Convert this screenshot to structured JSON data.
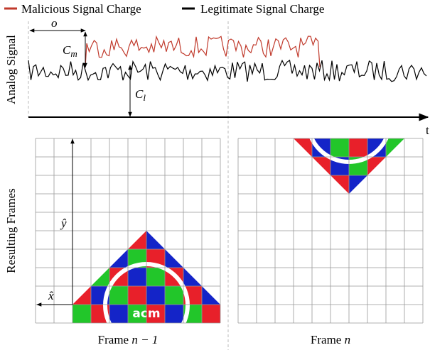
{
  "legend": {
    "malicious": "Malicious Signal Charge",
    "legitimate": "Legitimate Signal Charge"
  },
  "signal": {
    "ylabel": "Analog Signal",
    "xlabel": "t",
    "offset": "o",
    "cm": {
      "symbol": "C",
      "sub": "m"
    },
    "cl": {
      "symbol": "C",
      "sub": "l"
    }
  },
  "frames": {
    "ylabel": "Resulting Frames",
    "yhat": "ŷ",
    "xhat": "x̂",
    "logo": "acm",
    "captions": [
      {
        "word": "Frame",
        "index": "n − 1"
      },
      {
        "word": "Frame",
        "index": "n"
      }
    ]
  }
}
